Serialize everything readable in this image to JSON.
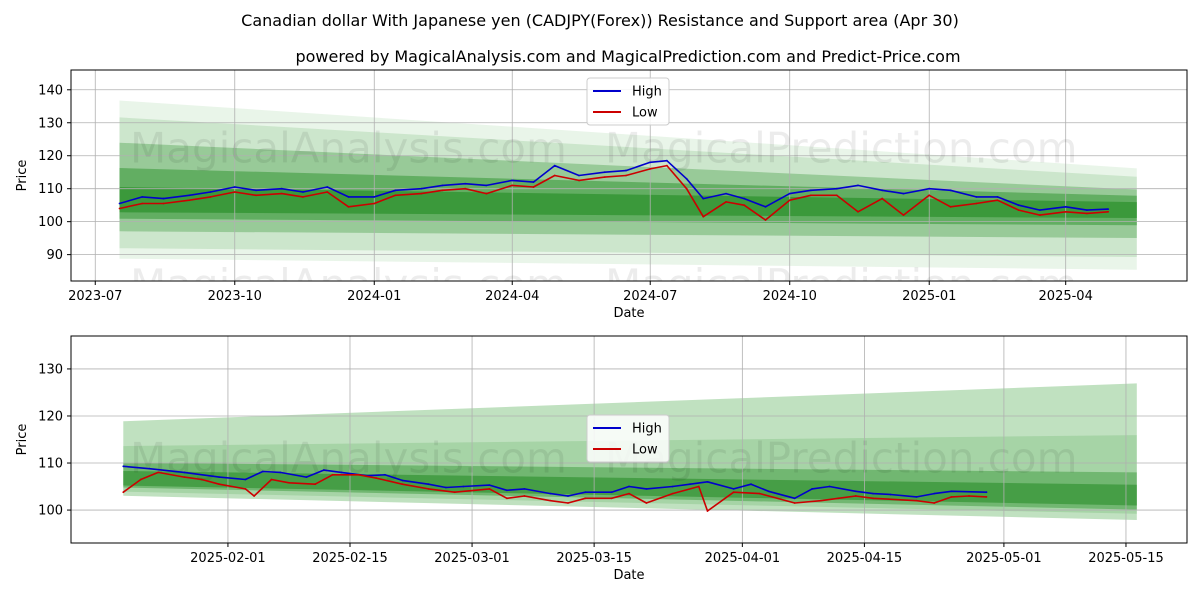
{
  "title": "Canadian dollar With Japanese yen (CADJPY(Forex)) Resistance and Support area (Apr 30)",
  "subtitle": "powered by MagicalAnalysis.com and MagicalPrediction.com and Predict-Price.com",
  "watermarks": [
    "MagicalAnalysis.com",
    "MagicalPrediction.com"
  ],
  "colors": {
    "high": "#0000cc",
    "low": "#cc0000",
    "band": "#228b22"
  },
  "chart_data": [
    {
      "type": "line",
      "xlabel": "Date",
      "ylabel": "Price",
      "ylim": [
        82,
        146
      ],
      "y_ticks": [
        90,
        100,
        110,
        120,
        130,
        140
      ],
      "x_ticks": [
        "2023-07",
        "2023-10",
        "2024-01",
        "2024-04",
        "2024-07",
        "2024-10",
        "2025-01",
        "2025-04"
      ],
      "x_range": [
        "2023-06-15",
        "2025-06-20"
      ],
      "legend": "upper center",
      "grid": true,
      "series": [
        {
          "name": "High",
          "points": [
            [
              "2023-07-17",
              105.5
            ],
            [
              "2023-08-01",
              107.5
            ],
            [
              "2023-08-15",
              107.0
            ],
            [
              "2023-09-01",
              108.0
            ],
            [
              "2023-09-15",
              109.0
            ],
            [
              "2023-10-01",
              110.5
            ],
            [
              "2023-10-15",
              109.5
            ],
            [
              "2023-11-01",
              110.0
            ],
            [
              "2023-11-15",
              109.0
            ],
            [
              "2023-12-01",
              110.5
            ],
            [
              "2023-12-15",
              107.5
            ],
            [
              "2024-01-01",
              107.5
            ],
            [
              "2024-01-15",
              109.5
            ],
            [
              "2024-02-01",
              110.0
            ],
            [
              "2024-02-15",
              111.0
            ],
            [
              "2024-03-01",
              111.5
            ],
            [
              "2024-03-15",
              111.0
            ],
            [
              "2024-04-01",
              112.5
            ],
            [
              "2024-04-15",
              112.0
            ],
            [
              "2024-04-29",
              117.0
            ],
            [
              "2024-05-15",
              114.0
            ],
            [
              "2024-06-01",
              115.0
            ],
            [
              "2024-06-15",
              115.5
            ],
            [
              "2024-07-01",
              118.0
            ],
            [
              "2024-07-12",
              118.5
            ],
            [
              "2024-07-25",
              113.0
            ],
            [
              "2024-08-05",
              107.0
            ],
            [
              "2024-08-20",
              108.5
            ],
            [
              "2024-09-01",
              107.0
            ],
            [
              "2024-09-15",
              104.5
            ],
            [
              "2024-10-01",
              108.5
            ],
            [
              "2024-10-15",
              109.5
            ],
            [
              "2024-11-01",
              110.0
            ],
            [
              "2024-11-15",
              111.0
            ],
            [
              "2024-12-01",
              109.5
            ],
            [
              "2024-12-15",
              108.5
            ],
            [
              "2025-01-01",
              110.0
            ],
            [
              "2025-01-15",
              109.5
            ],
            [
              "2025-02-01",
              107.5
            ],
            [
              "2025-02-15",
              107.5
            ],
            [
              "2025-03-01",
              105.0
            ],
            [
              "2025-03-15",
              103.5
            ],
            [
              "2025-04-01",
              104.5
            ],
            [
              "2025-04-15",
              103.5
            ],
            [
              "2025-04-29",
              103.8
            ]
          ]
        },
        {
          "name": "Low",
          "points": [
            [
              "2023-07-17",
              104.0
            ],
            [
              "2023-08-01",
              105.5
            ],
            [
              "2023-08-15",
              105.5
            ],
            [
              "2023-09-01",
              106.5
            ],
            [
              "2023-09-15",
              107.5
            ],
            [
              "2023-10-01",
              109.0
            ],
            [
              "2023-10-15",
              108.0
            ],
            [
              "2023-11-01",
              108.5
            ],
            [
              "2023-11-15",
              107.5
            ],
            [
              "2023-12-01",
              109.0
            ],
            [
              "2023-12-15",
              104.5
            ],
            [
              "2024-01-01",
              105.5
            ],
            [
              "2024-01-15",
              108.0
            ],
            [
              "2024-02-01",
              108.5
            ],
            [
              "2024-02-15",
              109.5
            ],
            [
              "2024-03-01",
              110.0
            ],
            [
              "2024-03-15",
              108.5
            ],
            [
              "2024-04-01",
              111.0
            ],
            [
              "2024-04-15",
              110.5
            ],
            [
              "2024-04-29",
              114.0
            ],
            [
              "2024-05-15",
              112.5
            ],
            [
              "2024-06-01",
              113.5
            ],
            [
              "2024-06-15",
              114.0
            ],
            [
              "2024-07-01",
              116.0
            ],
            [
              "2024-07-12",
              117.0
            ],
            [
              "2024-07-25",
              110.0
            ],
            [
              "2024-08-05",
              101.5
            ],
            [
              "2024-08-20",
              106.0
            ],
            [
              "2024-09-01",
              105.0
            ],
            [
              "2024-09-15",
              100.5
            ],
            [
              "2024-10-01",
              106.5
            ],
            [
              "2024-10-15",
              108.0
            ],
            [
              "2024-11-01",
              108.0
            ],
            [
              "2024-11-15",
              103.0
            ],
            [
              "2024-12-01",
              107.0
            ],
            [
              "2024-12-15",
              102.0
            ],
            [
              "2025-01-01",
              108.0
            ],
            [
              "2025-01-15",
              104.5
            ],
            [
              "2025-02-01",
              105.5
            ],
            [
              "2025-02-15",
              106.5
            ],
            [
              "2025-03-01",
              103.5
            ],
            [
              "2025-03-15",
              102.0
            ],
            [
              "2025-04-01",
              103.0
            ],
            [
              "2025-04-15",
              102.5
            ],
            [
              "2025-04-29",
              103.0
            ]
          ]
        }
      ]
    },
    {
      "type": "line",
      "xlabel": "Date",
      "ylabel": "Price",
      "ylim": [
        93,
        137
      ],
      "y_ticks": [
        100,
        110,
        120,
        130
      ],
      "x_ticks": [
        "2025-02-01",
        "2025-02-15",
        "2025-03-01",
        "2025-03-15",
        "2025-04-01",
        "2025-04-15",
        "2025-05-01",
        "2025-05-15"
      ],
      "x_range": [
        "2025-01-14",
        "2025-05-22"
      ],
      "legend": "center",
      "grid": true,
      "series": [
        {
          "name": "High",
          "points": [
            [
              "2025-01-20",
              109.3
            ],
            [
              "2025-01-23",
              108.8
            ],
            [
              "2025-01-27",
              108.0
            ],
            [
              "2025-01-31",
              107.0
            ],
            [
              "2025-02-03",
              106.5
            ],
            [
              "2025-02-05",
              108.2
            ],
            [
              "2025-02-07",
              108.0
            ],
            [
              "2025-02-10",
              107.0
            ],
            [
              "2025-02-12",
              108.5
            ],
            [
              "2025-02-14",
              108.0
            ],
            [
              "2025-02-17",
              107.3
            ],
            [
              "2025-02-19",
              107.5
            ],
            [
              "2025-02-21",
              106.3
            ],
            [
              "2025-02-24",
              105.5
            ],
            [
              "2025-02-26",
              104.8
            ],
            [
              "2025-02-28",
              105.0
            ],
            [
              "2025-03-03",
              105.3
            ],
            [
              "2025-03-05",
              104.2
            ],
            [
              "2025-03-07",
              104.5
            ],
            [
              "2025-03-10",
              103.5
            ],
            [
              "2025-03-12",
              103.0
            ],
            [
              "2025-03-14",
              103.8
            ],
            [
              "2025-03-17",
              103.8
            ],
            [
              "2025-03-19",
              105.0
            ],
            [
              "2025-03-21",
              104.5
            ],
            [
              "2025-03-24",
              105.0
            ],
            [
              "2025-03-26",
              105.5
            ],
            [
              "2025-03-28",
              106.0
            ],
            [
              "2025-03-31",
              104.5
            ],
            [
              "2025-04-02",
              105.5
            ],
            [
              "2025-04-04",
              104.0
            ],
            [
              "2025-04-07",
              102.5
            ],
            [
              "2025-04-09",
              104.5
            ],
            [
              "2025-04-11",
              105.0
            ],
            [
              "2025-04-14",
              104.0
            ],
            [
              "2025-04-16",
              103.5
            ],
            [
              "2025-04-18",
              103.3
            ],
            [
              "2025-04-21",
              102.8
            ],
            [
              "2025-04-23",
              103.5
            ],
            [
              "2025-04-25",
              104.0
            ],
            [
              "2025-04-29",
              103.8
            ]
          ]
        },
        {
          "name": "Low",
          "points": [
            [
              "2025-01-20",
              103.8
            ],
            [
              "2025-01-22",
              106.5
            ],
            [
              "2025-01-24",
              108.0
            ],
            [
              "2025-01-27",
              107.0
            ],
            [
              "2025-01-29",
              106.5
            ],
            [
              "2025-01-31",
              105.5
            ],
            [
              "2025-02-03",
              104.5
            ],
            [
              "2025-02-04",
              103.0
            ],
            [
              "2025-02-06",
              106.5
            ],
            [
              "2025-02-08",
              105.8
            ],
            [
              "2025-02-11",
              105.5
            ],
            [
              "2025-02-13",
              107.5
            ],
            [
              "2025-02-16",
              107.5
            ],
            [
              "2025-02-18",
              106.8
            ],
            [
              "2025-02-21",
              105.5
            ],
            [
              "2025-02-24",
              104.5
            ],
            [
              "2025-02-27",
              103.8
            ],
            [
              "2025-03-03",
              104.5
            ],
            [
              "2025-03-05",
              102.5
            ],
            [
              "2025-03-07",
              103.0
            ],
            [
              "2025-03-10",
              102.0
            ],
            [
              "2025-03-12",
              101.5
            ],
            [
              "2025-03-14",
              102.5
            ],
            [
              "2025-03-17",
              102.5
            ],
            [
              "2025-03-19",
              103.5
            ],
            [
              "2025-03-21",
              101.5
            ],
            [
              "2025-03-24",
              103.5
            ],
            [
              "2025-03-27",
              105.0
            ],
            [
              "2025-03-28",
              99.8
            ],
            [
              "2025-03-31",
              103.8
            ],
            [
              "2025-04-03",
              103.5
            ],
            [
              "2025-04-07",
              101.5
            ],
            [
              "2025-04-10",
              102.0
            ],
            [
              "2025-04-12",
              102.5
            ],
            [
              "2025-04-14",
              103.0
            ],
            [
              "2025-04-16",
              102.5
            ],
            [
              "2025-04-21",
              102.0
            ],
            [
              "2025-04-23",
              101.5
            ],
            [
              "2025-04-25",
              102.8
            ],
            [
              "2025-04-27",
              103.0
            ],
            [
              "2025-04-29",
              102.8
            ]
          ]
        }
      ]
    }
  ]
}
